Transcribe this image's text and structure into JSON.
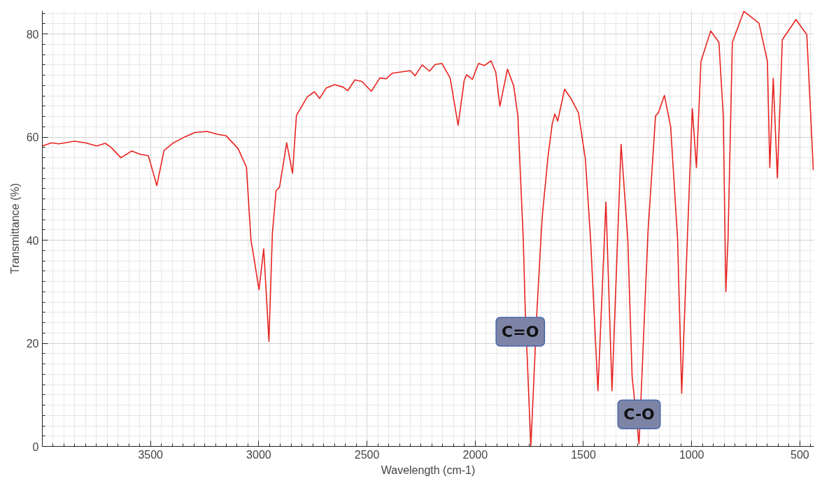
{
  "chart_data": {
    "type": "line",
    "xlabel": "Wavelength (cm-1)",
    "ylabel": "Transmittance (%)",
    "xlim": [
      4000,
      435
    ],
    "ylim": [
      0,
      84.5
    ],
    "xticks": [
      3500,
      3000,
      2500,
      2000,
      1500,
      1000,
      500
    ],
    "yticks": [
      0,
      20,
      40,
      60,
      80
    ],
    "grid": true,
    "marker": "none",
    "line_style": "solid",
    "x": [
      4000,
      3957,
      3924,
      3852,
      3802,
      3748,
      3709,
      3682,
      3637,
      3587,
      3550,
      3510,
      3471,
      3438,
      3394,
      3339,
      3295,
      3239,
      3185,
      3152,
      3096,
      3057,
      3036,
      3024,
      2999,
      2977,
      2953,
      2937,
      2920,
      2904,
      2871,
      2844,
      2826,
      2776,
      2743,
      2719,
      2689,
      2649,
      2610,
      2589,
      2556,
      2523,
      2480,
      2440,
      2412,
      2383,
      2300,
      2278,
      2245,
      2211,
      2185,
      2154,
      2116,
      2079,
      2051,
      2040,
      2013,
      1985,
      1957,
      1927,
      1905,
      1886,
      1851,
      1822,
      1803,
      1778,
      1769,
      1743,
      1715,
      1695,
      1689,
      1663,
      1644,
      1632,
      1619,
      1587,
      1555,
      1523,
      1491,
      1467,
      1433,
      1396,
      1368,
      1326,
      1295,
      1275,
      1243,
      1202,
      1167,
      1154,
      1126,
      1097,
      1065,
      1046,
      1020,
      997,
      978,
      957,
      912,
      874,
      854,
      842,
      832,
      812,
      759,
      689,
      650,
      639,
      623,
      604,
      581,
      518,
      468,
      438
    ],
    "series": [
      {
        "color": "#e8231f",
        "values": [
          58.3,
          58.9,
          58.7,
          59.2,
          58.9,
          58.3,
          58.8,
          58.0,
          56.0,
          57.3,
          56.7,
          56.4,
          50.6,
          57.4,
          58.9,
          60.1,
          60.9,
          61.1,
          60.5,
          60.3,
          57.8,
          54.2,
          40.0,
          37.0,
          30.4,
          38.3,
          20.4,
          41.4,
          49.6,
          50.3,
          58.9,
          53.0,
          64.2,
          67.8,
          68.8,
          67.5,
          69.5,
          70.2,
          69.7,
          69.0,
          71.1,
          70.8,
          68.9,
          71.5,
          71.3,
          72.4,
          72.9,
          71.9,
          74.0,
          72.8,
          74.1,
          74.3,
          71.5,
          62.3,
          71.0,
          72.1,
          71.2,
          74.3,
          73.9,
          74.8,
          72.6,
          66.0,
          73.2,
          69.9,
          64.1,
          40.2,
          26.6,
          0.0,
          26.1,
          41.4,
          45.2,
          56.5,
          62.6,
          64.5,
          63.1,
          69.3,
          67.3,
          64.7,
          55.7,
          40.2,
          10.8,
          47.4,
          10.8,
          58.6,
          40.2,
          13.5,
          0.5,
          41.4,
          64.1,
          64.7,
          68.1,
          62.0,
          40.2,
          10.3,
          40.2,
          65.5,
          54.1,
          74.7,
          80.6,
          78.4,
          64.1,
          30.0,
          40.2,
          78.4,
          84.4,
          82.1,
          74.7,
          54.1,
          71.4,
          52.1,
          78.9,
          82.8,
          79.9,
          53.6
        ]
      }
    ],
    "annotations": [
      {
        "text": "C=O",
        "x": 1769,
        "y": 26.6
      },
      {
        "text": "C-O",
        "x": 1243,
        "y": 0.5
      }
    ]
  }
}
